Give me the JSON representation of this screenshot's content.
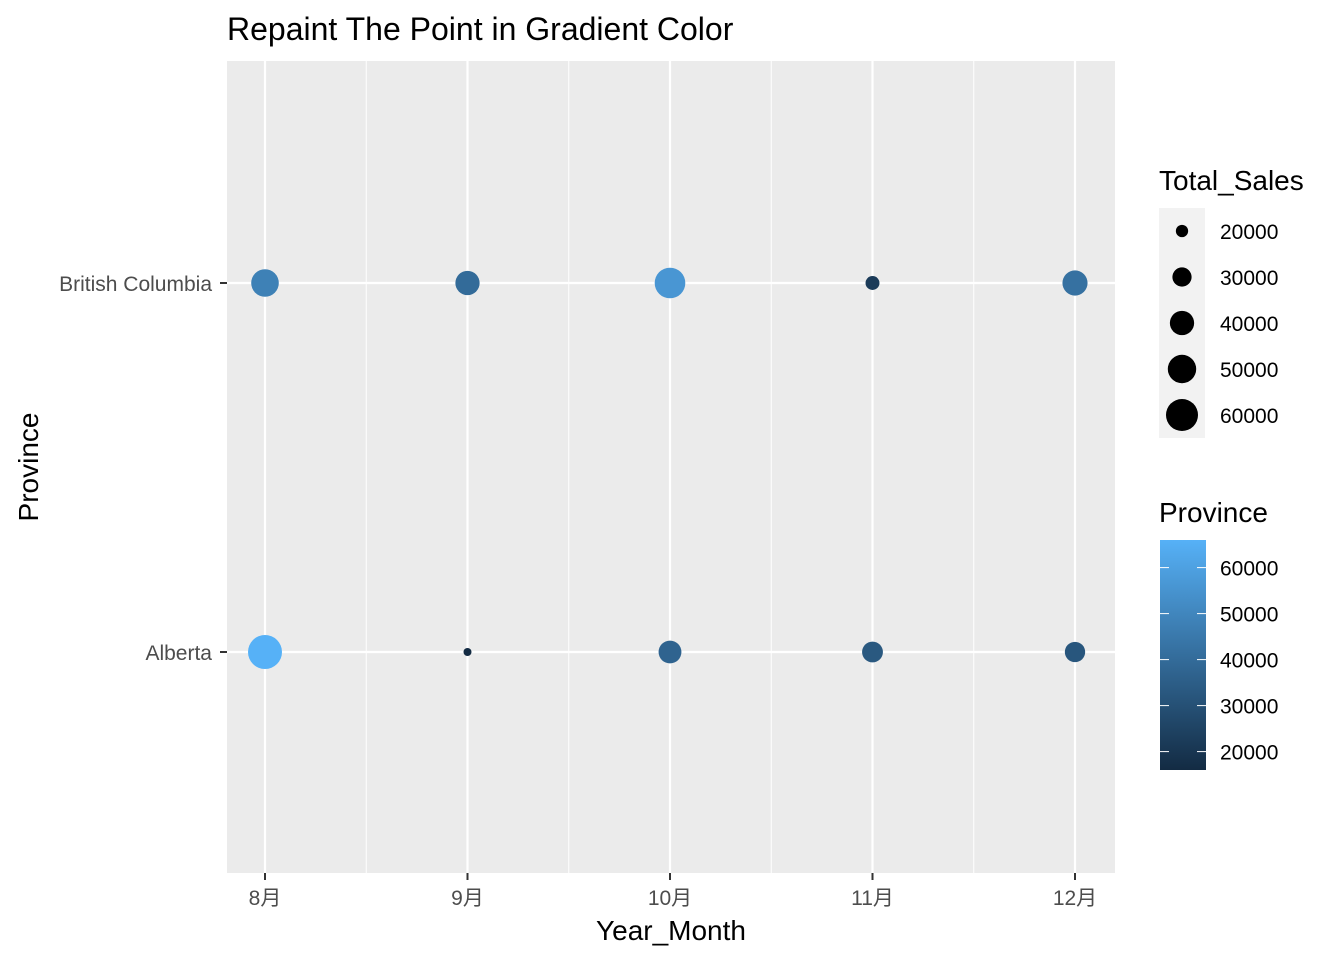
{
  "chart_data": {
    "type": "scatter",
    "title": "Repaint The Point in Gradient Color",
    "xlabel": "Year_Month",
    "ylabel": "Province",
    "x_categories": [
      "8月",
      "9月",
      "10月",
      "11月",
      "12月"
    ],
    "y_categories": [
      "Alberta",
      "British Columbia"
    ],
    "grid": true,
    "points": [
      {
        "x": "8月",
        "y": "British Columbia",
        "total_sales": 48000
      },
      {
        "x": "9月",
        "y": "British Columbia",
        "total_sales": 40000
      },
      {
        "x": "10月",
        "y": "British Columbia",
        "total_sales": 56000
      },
      {
        "x": "11月",
        "y": "British Columbia",
        "total_sales": 22000
      },
      {
        "x": "12月",
        "y": "British Columbia",
        "total_sales": 42000
      },
      {
        "x": "8月",
        "y": "Alberta",
        "total_sales": 66000
      },
      {
        "x": "9月",
        "y": "Alberta",
        "total_sales": 16000
      },
      {
        "x": "10月",
        "y": "Alberta",
        "total_sales": 37000
      },
      {
        "x": "11月",
        "y": "Alberta",
        "total_sales": 33000
      },
      {
        "x": "12月",
        "y": "Alberta",
        "total_sales": 32000
      }
    ],
    "size_legend": {
      "title": "Total_Sales",
      "breaks": [
        20000,
        30000,
        40000,
        50000,
        60000
      ]
    },
    "color_legend": {
      "title": "Province",
      "breaks": [
        20000,
        30000,
        40000,
        50000,
        60000
      ],
      "range": [
        16000,
        66000
      ],
      "low_color": "#132B43",
      "high_color": "#56B1F7"
    },
    "legend_position": "right",
    "panel_background": "#EBEBEB",
    "grid_color": "#FFFFFF"
  }
}
